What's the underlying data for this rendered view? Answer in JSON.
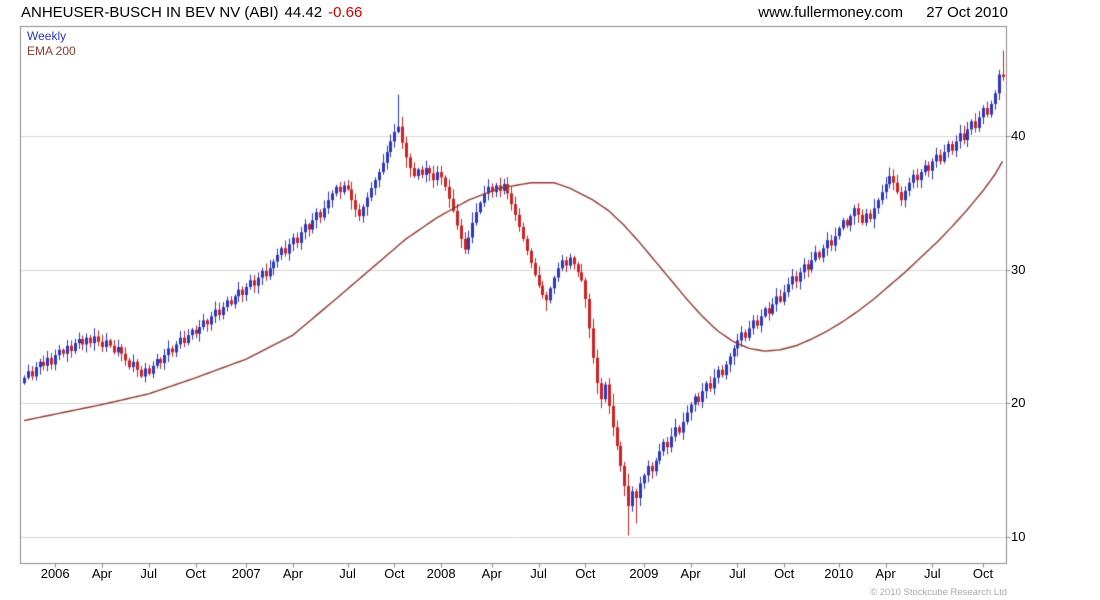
{
  "header": {
    "title": "ANHEUSER-BUSCH IN BEV NV (ABI)",
    "price": "44.42",
    "change": "-0.66",
    "website": "www.fullermoney.com",
    "date": "27 Oct 2010"
  },
  "legend": {
    "series1": "Weekly",
    "series2": "EMA 200"
  },
  "footer": {
    "copyright": "© 2010 Stockcube Research Ltd"
  },
  "colors": {
    "background": "#ffffff",
    "up": "#2b38bb",
    "down": "#cc2222",
    "ema": "#8e3a34",
    "grid": "#d8d8d8",
    "border": "#8c8c8c",
    "change_text": "#cc0000",
    "copyright_text": "#a9a9a9"
  },
  "chart_data": {
    "type": "candlestick",
    "title": "ANHEUSER-BUSCH IN BEV NV (ABI) — weekly candles with EMA 200",
    "interval": "Weekly",
    "last_price": 44.42,
    "last_change": -0.66,
    "y_axis": {
      "side": "right",
      "range": [
        8.0,
        48.2
      ],
      "ticks": [
        10,
        20,
        30,
        40
      ],
      "gridlines": true
    },
    "x_axis": {
      "ticks": [
        {
          "label": "2006",
          "week": 8,
          "year": true
        },
        {
          "label": "Apr",
          "week": 20
        },
        {
          "label": "Jul",
          "week": 32
        },
        {
          "label": "Oct",
          "week": 44
        },
        {
          "label": "2007",
          "week": 57,
          "year": true
        },
        {
          "label": "Apr",
          "week": 69
        },
        {
          "label": "Jul",
          "week": 83
        },
        {
          "label": "Oct",
          "week": 95
        },
        {
          "label": "2008",
          "week": 107,
          "year": true
        },
        {
          "label": "Apr",
          "week": 120
        },
        {
          "label": "Jul",
          "week": 132
        },
        {
          "label": "Oct",
          "week": 144
        },
        {
          "label": "2009",
          "week": 159,
          "year": true
        },
        {
          "label": "Apr",
          "week": 171
        },
        {
          "label": "Jul",
          "week": 183
        },
        {
          "label": "Oct",
          "week": 195
        },
        {
          "label": "2010",
          "week": 209,
          "year": true
        },
        {
          "label": "Apr",
          "week": 221
        },
        {
          "label": "Jul",
          "week": 233
        },
        {
          "label": "Oct",
          "week": 246
        }
      ]
    },
    "series": [
      {
        "name": "Weekly",
        "type": "candles",
        "first_open": 21.5,
        "closes": [
          21.9,
          22.4,
          22.0,
          22.7,
          23.1,
          22.8,
          23.4,
          22.9,
          23.6,
          24.0,
          23.7,
          24.3,
          23.9,
          24.5,
          24.8,
          24.4,
          24.9,
          24.5,
          25.0,
          24.6,
          24.2,
          24.7,
          24.3,
          23.8,
          24.2,
          23.7,
          23.2,
          22.7,
          23.1,
          22.5,
          22.0,
          22.6,
          22.2,
          22.8,
          23.3,
          23.0,
          23.6,
          24.1,
          23.8,
          24.4,
          24.9,
          24.5,
          25.1,
          25.5,
          25.2,
          25.7,
          26.2,
          25.9,
          26.5,
          27.0,
          26.6,
          27.2,
          27.7,
          27.4,
          28.0,
          28.5,
          28.1,
          28.7,
          29.2,
          28.8,
          29.4,
          29.9,
          29.5,
          30.1,
          30.6,
          31.1,
          31.6,
          31.2,
          31.9,
          32.4,
          32.0,
          32.8,
          33.4,
          33.0,
          33.7,
          34.3,
          33.9,
          34.6,
          35.2,
          35.7,
          36.2,
          35.8,
          36.3,
          36.0,
          35.2,
          34.5,
          34.0,
          34.7,
          35.4,
          36.1,
          36.7,
          37.3,
          38.0,
          38.8,
          39.6,
          40.3,
          40.7,
          39.5,
          38.4,
          37.6,
          37.0,
          37.5,
          37.1,
          37.6,
          37.2,
          36.7,
          37.3,
          36.9,
          36.2,
          35.3,
          34.4,
          33.3,
          32.3,
          31.5,
          32.4,
          33.5,
          34.3,
          35.0,
          35.7,
          36.2,
          35.8,
          36.3,
          35.9,
          36.4,
          35.7,
          34.9,
          34.1,
          33.2,
          32.3,
          31.4,
          30.5,
          29.6,
          28.8,
          28.1,
          27.7,
          28.6,
          29.4,
          30.1,
          30.7,
          30.3,
          30.9,
          30.4,
          29.8,
          29.2,
          27.8,
          25.6,
          23.4,
          21.5,
          20.3,
          21.4,
          19.8,
          18.2,
          16.8,
          15.3,
          13.8,
          12.3,
          13.4,
          12.9,
          14.0,
          14.6,
          15.3,
          14.9,
          15.7,
          16.4,
          17.1,
          16.7,
          17.5,
          18.2,
          17.8,
          18.6,
          19.3,
          19.9,
          20.5,
          20.1,
          20.9,
          21.5,
          21.1,
          21.9,
          22.5,
          22.1,
          22.9,
          23.5,
          24.1,
          24.7,
          25.3,
          24.9,
          25.6,
          26.2,
          25.8,
          26.5,
          27.1,
          26.7,
          27.4,
          28.0,
          27.6,
          28.3,
          28.9,
          29.5,
          29.1,
          29.8,
          30.4,
          30.0,
          30.7,
          31.3,
          30.9,
          31.6,
          32.2,
          31.8,
          32.5,
          33.1,
          33.7,
          33.3,
          34.0,
          34.6,
          34.1,
          33.5,
          34.2,
          33.8,
          34.6,
          35.2,
          35.8,
          36.4,
          37.0,
          36.5,
          35.8,
          35.2,
          35.9,
          36.5,
          37.1,
          36.7,
          37.3,
          37.8,
          37.4,
          38.1,
          38.6,
          38.1,
          38.8,
          39.4,
          38.9,
          39.6,
          40.2,
          39.7,
          40.5,
          41.1,
          40.6,
          41.4,
          42.1,
          41.6,
          42.4,
          43.2,
          44.6,
          44.42
        ],
        "wick_overrides": [
          {
            "i": 96,
            "high": 43.1
          },
          {
            "i": 134,
            "low": 26.9
          },
          {
            "i": 155,
            "low": 10.1
          },
          {
            "i": 157,
            "low": 11.0
          },
          {
            "i": 251,
            "high": 46.4
          }
        ]
      },
      {
        "name": "EMA 200",
        "type": "line",
        "points": [
          [
            0,
            18.7
          ],
          [
            10,
            19.3
          ],
          [
            20,
            19.9
          ],
          [
            32,
            20.7
          ],
          [
            44,
            21.9
          ],
          [
            57,
            23.3
          ],
          [
            69,
            25.1
          ],
          [
            80,
            27.8
          ],
          [
            90,
            30.3
          ],
          [
            98,
            32.3
          ],
          [
            106,
            33.9
          ],
          [
            114,
            35.2
          ],
          [
            122,
            36.1
          ],
          [
            130,
            36.5
          ],
          [
            136,
            36.5
          ],
          [
            140,
            36.1
          ],
          [
            146,
            35.2
          ],
          [
            150,
            34.4
          ],
          [
            154,
            33.3
          ],
          [
            158,
            32.0
          ],
          [
            162,
            30.6
          ],
          [
            166,
            29.2
          ],
          [
            170,
            27.8
          ],
          [
            174,
            26.5
          ],
          [
            178,
            25.4
          ],
          [
            182,
            24.6
          ],
          [
            186,
            24.1
          ],
          [
            190,
            23.9
          ],
          [
            194,
            24.0
          ],
          [
            198,
            24.3
          ],
          [
            202,
            24.8
          ],
          [
            206,
            25.4
          ],
          [
            210,
            26.1
          ],
          [
            214,
            26.9
          ],
          [
            218,
            27.8
          ],
          [
            222,
            28.8
          ],
          [
            226,
            29.8
          ],
          [
            230,
            30.9
          ],
          [
            234,
            32.0
          ],
          [
            238,
            33.2
          ],
          [
            242,
            34.5
          ],
          [
            246,
            35.9
          ],
          [
            249,
            37.1
          ],
          [
            251,
            38.1
          ]
        ]
      }
    ]
  }
}
